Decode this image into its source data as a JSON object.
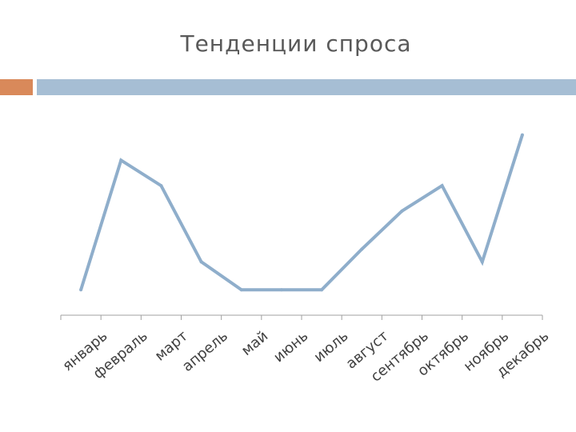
{
  "title": "Тенденции спроса",
  "colors": {
    "accent_left": "#d9895a",
    "accent_bar": "#a6bed4",
    "series_line": "#8faecb",
    "axis": "#a0a0a0"
  },
  "chart_data": {
    "type": "line",
    "title": "Тенденции спроса",
    "categories": [
      "январь",
      "февраль",
      "март",
      "апрель",
      "май",
      "июнь",
      "июль",
      "август",
      "сентябрь",
      "октябрь",
      "ноябрь",
      "декабрь"
    ],
    "values": [
      1,
      6.1,
      5.1,
      2.1,
      1,
      1,
      1,
      2.6,
      4.1,
      5.1,
      2.1,
      7.1
    ],
    "ylim": [
      0,
      8
    ],
    "grid": false,
    "legend": "none",
    "xlabel": "",
    "ylabel": ""
  }
}
